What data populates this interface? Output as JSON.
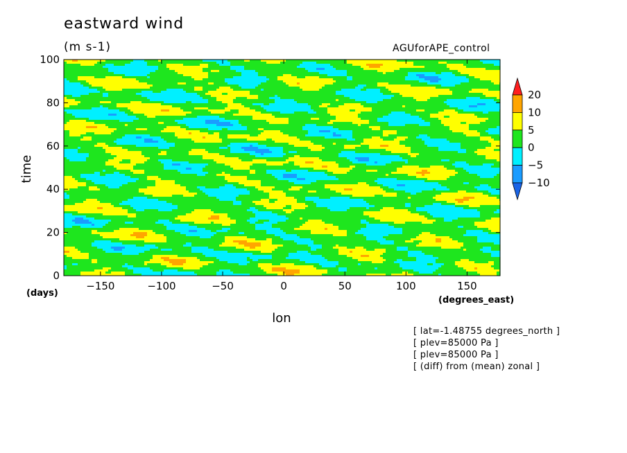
{
  "title": "eastward wind",
  "units": "(m s-1)",
  "run_label": "AGUforAPE_control",
  "info_lines": [
    "[ lat=-1.48755 degrees_north ]",
    "[ plev=85000 Pa ]",
    "[ plev=85000 Pa ]",
    "[ (diff) from (mean) zonal ]"
  ],
  "chart_data": {
    "type": "heatmap",
    "xlabel": "lon",
    "ylabel": "time",
    "x_unit_label": "(degrees_east)",
    "y_unit_label": "(days)",
    "xlim": [
      -180,
      177
    ],
    "ylim": [
      0,
      100
    ],
    "xticks": [
      -150,
      -100,
      -50,
      0,
      50,
      100,
      150
    ],
    "yticks": [
      0,
      20,
      40,
      60,
      80,
      100
    ],
    "color_levels": [
      -10,
      -5,
      0,
      5,
      10,
      20
    ],
    "level_colors": [
      "#1a64e6",
      "#1a9cff",
      "#00f0ff",
      "#1ee61e",
      "#ffff00",
      "#ffa500",
      "#ff1e1e"
    ],
    "colorbar_labels": [
      "20",
      "10",
      "5",
      "0",
      "-5",
      "-10"
    ],
    "values_description": "eastward wind anomaly field; values mostly between -10 and 10 with scattered patches of 10-20, structures tilted westward with increasing time"
  }
}
